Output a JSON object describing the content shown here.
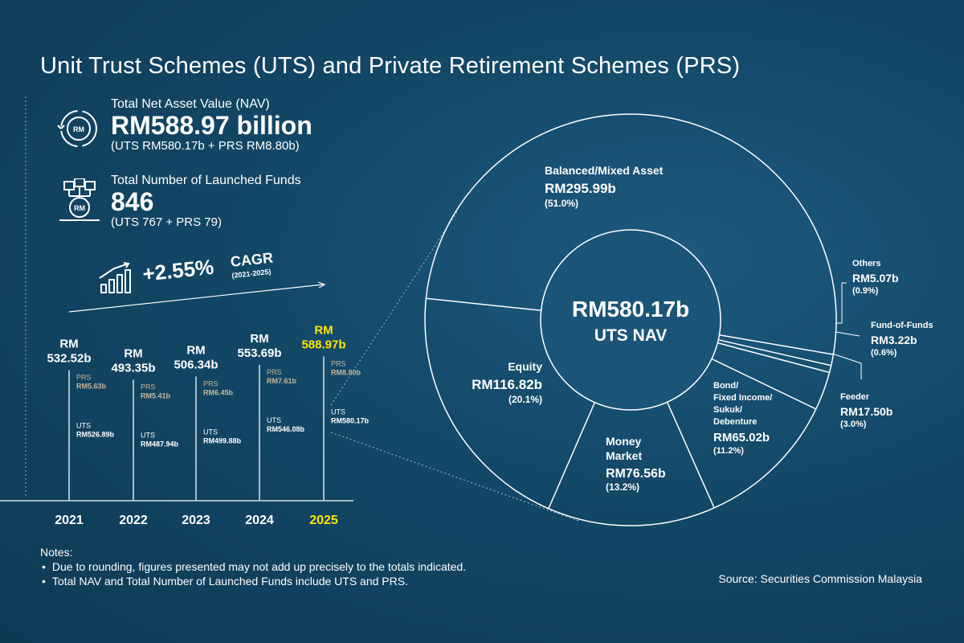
{
  "title": "Unit Trust Schemes (UTS) and Private Retirement Schemes (PRS)",
  "nav": {
    "label": "Total Net Asset Value (NAV)",
    "value": "RM588.97 billion",
    "breakdown": "(UTS RM580.17b + PRS RM8.80b)",
    "icon": "nav-chart-icon"
  },
  "funds": {
    "label": "Total Number of Launched Funds",
    "value": "846",
    "breakdown": "(UTS 767 + PRS 79)",
    "icon": "funds-network-icon"
  },
  "cagr": {
    "value": "+2.55%",
    "label": "CAGR",
    "period": "(2021-2025)",
    "icon": "growth-chart-icon"
  },
  "colors": {
    "highlight": "#ffe600",
    "prs_label": "#c8b79a",
    "line": "#ffffff"
  },
  "chart_data": [
    {
      "type": "bar",
      "categories": [
        "2021",
        "2022",
        "2023",
        "2024",
        "2025"
      ],
      "highlight_category": "2025",
      "totals": [
        532.52,
        493.35,
        506.34,
        553.69,
        588.97
      ],
      "total_labels": [
        [
          "RM",
          "532.52b"
        ],
        [
          "RM",
          "493.35b"
        ],
        [
          "RM",
          "506.34b"
        ],
        [
          "RM",
          "553.69b"
        ],
        [
          "RM",
          "588.97b"
        ]
      ],
      "series": [
        {
          "name": "UTS",
          "values": [
            526.89,
            487.94,
            499.88,
            546.08,
            580.17
          ],
          "labels": [
            "RM526.89b",
            "RM487.94b",
            "RM499.88b",
            "RM546.08b",
            "RM580.17b"
          ]
        },
        {
          "name": "PRS",
          "values": [
            5.63,
            5.41,
            6.45,
            7.61,
            8.8
          ],
          "labels": [
            "RM5.63b",
            "RM5.41b",
            "RM6.45b",
            "RM7.61b",
            "RM8.80b"
          ]
        }
      ]
    },
    {
      "type": "pie",
      "center_value": "RM580.17b",
      "center_label": "UTS NAV",
      "slices": [
        {
          "name": [
            "Balanced/Mixed Asset"
          ],
          "value": 295.99,
          "value_label": "RM295.99b",
          "pct": "(51.0%)"
        },
        {
          "name": [
            "Others"
          ],
          "value": 5.07,
          "value_label": "RM5.07b",
          "pct": "(0.9%)"
        },
        {
          "name": [
            "Fund-of-Funds"
          ],
          "value": 3.22,
          "value_label": "RM3.22b",
          "pct": "(0.6%)"
        },
        {
          "name": [
            "Feeder"
          ],
          "value": 17.5,
          "value_label": "RM17.50b",
          "pct": "(3.0%)"
        },
        {
          "name": [
            "Bond/",
            "Fixed Income/",
            "Sukuk/",
            "Debenture"
          ],
          "value": 65.02,
          "value_label": "RM65.02b",
          "pct": "(11.2%)"
        },
        {
          "name": [
            "Money",
            "Market"
          ],
          "value": 76.56,
          "value_label": "RM76.56b",
          "pct": "(13.2%)"
        },
        {
          "name": [
            "Equity"
          ],
          "value": 116.82,
          "value_label": "RM116.82b",
          "pct": "(20.1%)"
        }
      ]
    }
  ],
  "notes": {
    "heading": "Notes:",
    "items": [
      "Due to rounding, figures presented may not add up precisely to the totals indicated.",
      "Total NAV and Total Number of Launched Funds include UTS and PRS."
    ]
  },
  "source": "Source: Securities Commission Malaysia"
}
